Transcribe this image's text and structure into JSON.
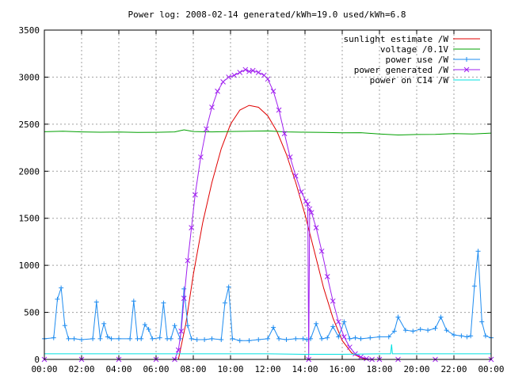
{
  "chart_data": {
    "type": "line",
    "title": "Power log: 2008-02-14 generated/kWh=19.0 used/kWh=6.8",
    "xlabel": "",
    "ylabel": "",
    "x_range_hours": [
      0,
      24
    ],
    "ylim": [
      0,
      3500
    ],
    "x_ticks": [
      "00:00",
      "02:00",
      "04:00",
      "06:00",
      "08:00",
      "10:00",
      "12:00",
      "14:00",
      "16:00",
      "18:00",
      "20:00",
      "22:00",
      "00:00"
    ],
    "y_ticks": [
      "0",
      "500",
      "1000",
      "1500",
      "2000",
      "2500",
      "3000",
      "3500"
    ],
    "grid": true,
    "legend_position": "top-right",
    "series": [
      {
        "name": "sunlight estimate /W",
        "color": "#e00000",
        "marker": "none",
        "x": [
          7.2,
          7.6,
          8.0,
          8.5,
          9.0,
          9.5,
          10.0,
          10.5,
          11.0,
          11.5,
          12.0,
          12.5,
          13.0,
          13.5,
          14.0,
          14.5,
          15.0,
          15.5,
          16.0,
          16.5,
          17.0,
          17.4
        ],
        "y": [
          0,
          380,
          900,
          1450,
          1880,
          2240,
          2500,
          2650,
          2700,
          2680,
          2590,
          2420,
          2180,
          1880,
          1540,
          1150,
          760,
          440,
          200,
          70,
          15,
          0
        ]
      },
      {
        "name": "voltage /0.1V",
        "color": "#00a000",
        "marker": "none",
        "x": [
          0,
          1,
          2,
          3,
          4,
          5,
          6,
          7,
          7.5,
          8,
          9,
          10,
          11,
          12,
          13,
          14,
          15,
          16,
          17,
          18,
          19,
          20,
          21,
          22,
          23,
          24
        ],
        "y": [
          2420,
          2425,
          2418,
          2415,
          2417,
          2412,
          2414,
          2418,
          2440,
          2422,
          2418,
          2422,
          2425,
          2428,
          2418,
          2415,
          2412,
          2408,
          2410,
          2395,
          2385,
          2390,
          2392,
          2400,
          2395,
          2405
        ]
      },
      {
        "name": "power use /W",
        "color": "#1e8cf0",
        "marker": "+",
        "x": [
          0,
          0.5,
          0.7,
          0.9,
          1.1,
          1.3,
          1.6,
          2.0,
          2.6,
          2.8,
          3.0,
          3.2,
          3.4,
          3.6,
          4.0,
          4.6,
          4.8,
          5.0,
          5.2,
          5.4,
          5.6,
          5.8,
          6.2,
          6.4,
          6.6,
          6.8,
          7.0,
          7.3,
          7.5,
          7.7,
          7.9,
          8.2,
          8.6,
          9.0,
          9.5,
          9.7,
          9.9,
          10.1,
          10.5,
          11.0,
          11.5,
          12.0,
          12.3,
          12.6,
          13.0,
          13.5,
          13.9,
          14.1,
          14.3,
          14.6,
          14.9,
          15.2,
          15.5,
          15.8,
          16.1,
          16.4,
          16.7,
          17.0,
          17.5,
          18.0,
          18.5,
          18.8,
          19.0,
          19.4,
          19.8,
          20.2,
          20.6,
          21.0,
          21.3,
          21.6,
          22.0,
          22.4,
          22.7,
          22.9,
          23.1,
          23.3,
          23.5,
          23.7,
          24.0
        ],
        "y": [
          220,
          230,
          640,
          760,
          360,
          220,
          220,
          210,
          220,
          610,
          220,
          380,
          240,
          220,
          220,
          220,
          620,
          220,
          220,
          370,
          320,
          220,
          230,
          600,
          220,
          220,
          360,
          220,
          750,
          360,
          220,
          210,
          210,
          220,
          210,
          600,
          770,
          220,
          200,
          200,
          210,
          220,
          340,
          220,
          210,
          220,
          220,
          210,
          220,
          380,
          220,
          230,
          350,
          240,
          400,
          220,
          230,
          220,
          230,
          240,
          240,
          300,
          450,
          310,
          300,
          320,
          310,
          330,
          450,
          310,
          260,
          250,
          240,
          250,
          780,
          1150,
          400,
          250,
          230
        ]
      },
      {
        "name": "power generated /W",
        "color": "#a020f0",
        "marker": "x",
        "x": [
          0,
          2,
          4,
          6,
          7.0,
          7.2,
          7.35,
          7.5,
          7.7,
          7.9,
          8.1,
          8.4,
          8.7,
          9.0,
          9.3,
          9.6,
          9.9,
          10.2,
          10.5,
          10.8,
          11.0,
          11.2,
          11.5,
          11.8,
          12.0,
          12.3,
          12.6,
          12.9,
          13.2,
          13.5,
          13.8,
          14.05,
          14.15,
          14.2,
          14.25,
          14.35,
          14.6,
          14.9,
          15.2,
          15.5,
          15.8,
          16.1,
          16.4,
          16.7,
          17.0,
          17.3,
          17.6,
          18.0,
          19.0,
          21.0,
          24.0
        ],
        "y": [
          0,
          0,
          0,
          0,
          0,
          100,
          300,
          650,
          1050,
          1400,
          1750,
          2150,
          2450,
          2680,
          2850,
          2950,
          3000,
          3020,
          3050,
          3080,
          3060,
          3070,
          3050,
          3020,
          2980,
          2850,
          2650,
          2400,
          2150,
          1950,
          1780,
          1680,
          1650,
          0,
          1600,
          1560,
          1400,
          1150,
          880,
          620,
          400,
          240,
          130,
          60,
          25,
          8,
          0,
          0,
          0,
          0,
          0
        ]
      },
      {
        "name": "power on C14 /W",
        "color": "#00e0e0",
        "marker": "none",
        "x": [
          0,
          2,
          4,
          6,
          8,
          10,
          12,
          14,
          16,
          18,
          18.6,
          18.65,
          18.7,
          20,
          22,
          24
        ],
        "y": [
          60,
          60,
          60,
          60,
          60,
          60,
          60,
          55,
          55,
          60,
          60,
          160,
          60,
          60,
          60,
          60
        ]
      }
    ]
  }
}
